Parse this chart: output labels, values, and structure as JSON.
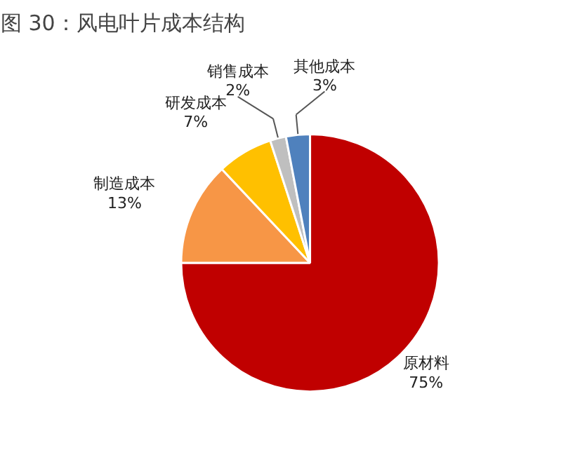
{
  "chart_data": {
    "type": "pie",
    "title": "图 30：风电叶片成本结构",
    "categories": [
      "原材料",
      "制造成本",
      "研发成本",
      "销售成本",
      "其他成本"
    ],
    "values": [
      75,
      13,
      7,
      2,
      3
    ],
    "colors": [
      "#c00000",
      "#f79646",
      "#ffc000",
      "#bfbfbf",
      "#4f81bd"
    ],
    "value_labels": [
      "75%",
      "13%",
      "7%",
      "2%",
      "3%"
    ]
  }
}
